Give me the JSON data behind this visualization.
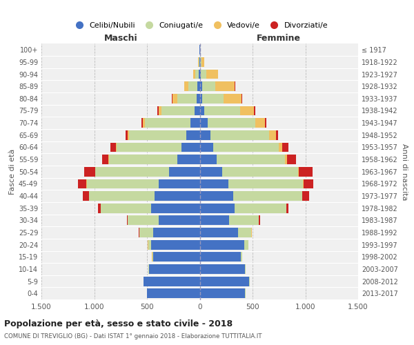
{
  "age_groups": [
    "0-4",
    "5-9",
    "10-14",
    "15-19",
    "20-24",
    "25-29",
    "30-34",
    "35-39",
    "40-44",
    "45-49",
    "50-54",
    "55-59",
    "60-64",
    "65-69",
    "70-74",
    "75-79",
    "80-84",
    "85-89",
    "90-94",
    "95-99",
    "100+"
  ],
  "birth_years": [
    "2013-2017",
    "2008-2012",
    "2003-2007",
    "1998-2002",
    "1993-1997",
    "1988-1992",
    "1983-1987",
    "1978-1982",
    "1973-1977",
    "1968-1972",
    "1963-1967",
    "1958-1962",
    "1953-1957",
    "1948-1952",
    "1943-1947",
    "1938-1942",
    "1933-1937",
    "1928-1932",
    "1923-1927",
    "1918-1922",
    "≤ 1917"
  ],
  "maschi": {
    "celibi": [
      500,
      530,
      480,
      440,
      460,
      440,
      390,
      460,
      430,
      390,
      290,
      210,
      170,
      130,
      90,
      50,
      30,
      20,
      10,
      4,
      2
    ],
    "coniugati": [
      2,
      3,
      5,
      10,
      30,
      130,
      290,
      480,
      620,
      680,
      700,
      650,
      620,
      540,
      430,
      310,
      180,
      90,
      30,
      5,
      2
    ],
    "vedovi": [
      0,
      0,
      0,
      1,
      1,
      1,
      1,
      1,
      1,
      2,
      2,
      3,
      5,
      10,
      20,
      30,
      50,
      40,
      20,
      5,
      1
    ],
    "divorziati": [
      0,
      0,
      0,
      1,
      2,
      5,
      10,
      20,
      60,
      80,
      100,
      60,
      50,
      20,
      15,
      10,
      5,
      0,
      0,
      0,
      0
    ]
  },
  "femmine": {
    "nubili": [
      430,
      470,
      430,
      390,
      420,
      360,
      280,
      330,
      320,
      270,
      210,
      160,
      130,
      100,
      75,
      40,
      25,
      20,
      10,
      4,
      2
    ],
    "coniugate": [
      2,
      3,
      5,
      10,
      40,
      130,
      280,
      490,
      650,
      710,
      720,
      650,
      620,
      560,
      450,
      340,
      200,
      130,
      50,
      10,
      2
    ],
    "vedove": [
      0,
      0,
      0,
      1,
      1,
      1,
      1,
      2,
      3,
      5,
      10,
      20,
      30,
      60,
      90,
      130,
      170,
      180,
      110,
      30,
      2
    ],
    "divorziate": [
      0,
      0,
      0,
      1,
      2,
      5,
      10,
      20,
      60,
      90,
      130,
      80,
      60,
      20,
      15,
      15,
      10,
      5,
      2,
      0,
      0
    ]
  },
  "color_celibi": "#4472c4",
  "color_coniugati": "#c5d9a0",
  "color_vedovi": "#f0c060",
  "color_divorziati": "#cc2222",
  "xlim": 1500,
  "title": "Popolazione per età, sesso e stato civile - 2018",
  "subtitle": "COMUNE DI TREVIGLIO (BG) - Dati ISTAT 1° gennaio 2018 - Elaborazione TUTTITALIA.IT",
  "ylabel_left": "Fasce di età",
  "ylabel_right": "Anni di nascita",
  "xlabel_maschi": "Maschi",
  "xlabel_femmine": "Femmine"
}
